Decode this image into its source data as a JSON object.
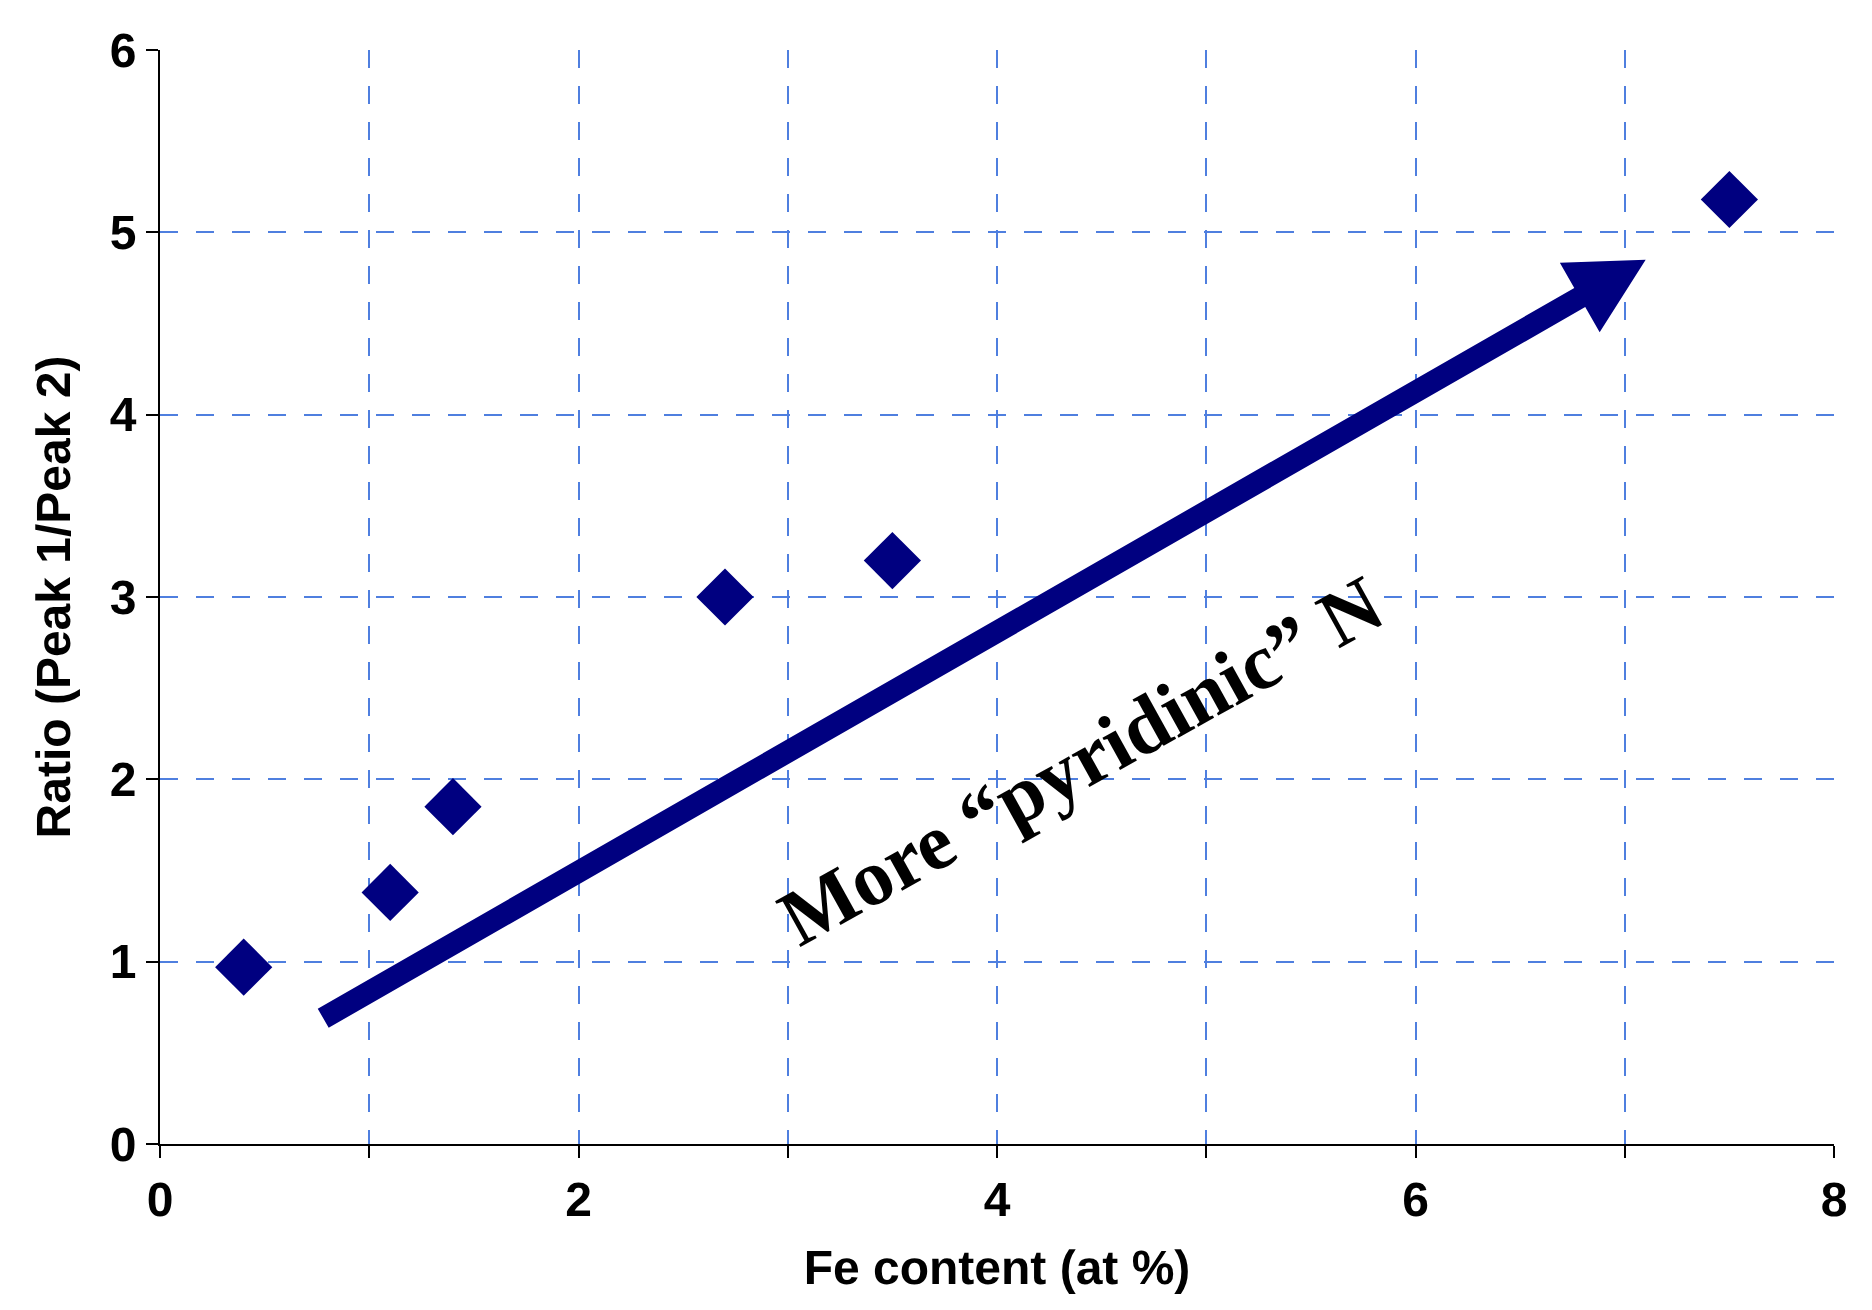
{
  "chart_data": {
    "type": "scatter",
    "xlabel": "Fe content (at %)",
    "ylabel": "Ratio (Peak 1/Peak 2)",
    "x": [
      0.4,
      1.1,
      1.4,
      2.7,
      3.5,
      7.5
    ],
    "series": [
      {
        "color": "#000080",
        "values": [
          0.97,
          1.38,
          1.85,
          3.0,
          3.2,
          5.18
        ]
      }
    ],
    "xlim": [
      0,
      8
    ],
    "ylim": [
      0,
      6
    ],
    "xticks": [
      0,
      {
        "value": 1,
        "label": null
      },
      2,
      {
        "value": 3,
        "label": null
      },
      4,
      {
        "value": 5,
        "label": null
      },
      6,
      {
        "value": 7,
        "label": null
      },
      8
    ],
    "yticks": [
      0,
      1,
      2,
      3,
      4,
      5,
      6
    ],
    "grid": true,
    "marker": "diamond",
    "legend": false,
    "annotations": [
      "More “pyridinic” N"
    ]
  }
}
